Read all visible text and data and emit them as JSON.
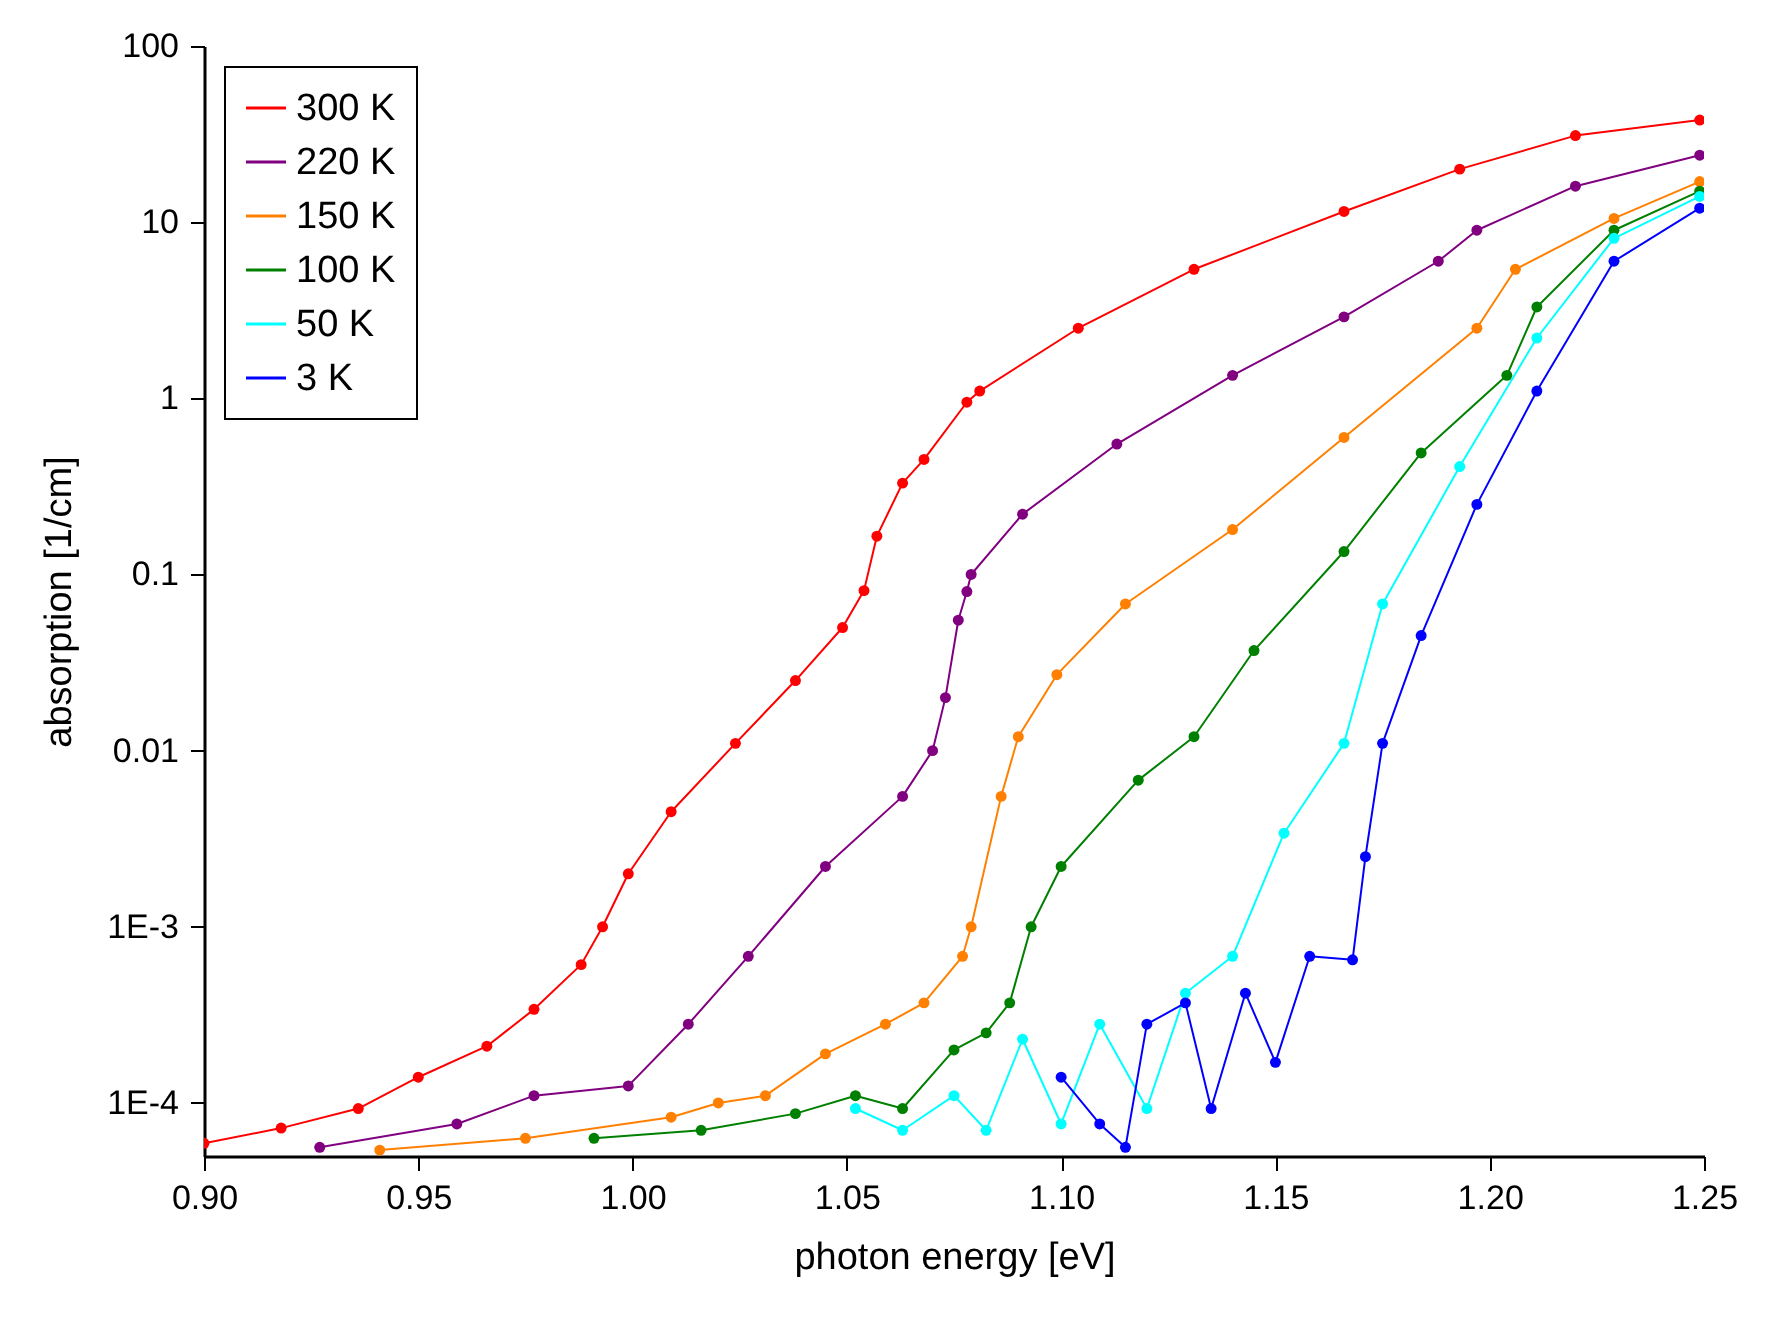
{
  "chart_data": {
    "type": "line",
    "xlabel": "photon energy [eV]",
    "ylabel": "absorption [1/cm]",
    "log": "y",
    "grid": false,
    "legend": "top left",
    "marker": "circle",
    "line_style": "solid",
    "xlim": [
      0.9,
      1.25
    ],
    "xticks": [
      {
        "value": 0.9,
        "label": "0.90"
      },
      0.95,
      {
        "value": 1.0,
        "label": "1.00"
      },
      1.05,
      {
        "value": 1.1,
        "label": "1.10"
      },
      1.15,
      {
        "value": 1.2,
        "label": "1.20"
      },
      1.25
    ],
    "ylim": [
      5e-05,
      100
    ],
    "yticks": [
      {
        "value": 0.0001,
        "label": "1E-4"
      },
      {
        "value": 0.001,
        "label": "1E-3"
      },
      0.01,
      0.1,
      1,
      10,
      100
    ],
    "series": [
      {
        "name": "300 K",
        "color": "#ff0000",
        "x": [
          0.9,
          0.918,
          0.936,
          0.95,
          0.966,
          0.977,
          0.988,
          0.993,
          0.999,
          1.009,
          1.024,
          1.038,
          1.049,
          1.054,
          1.057,
          1.063,
          1.068,
          1.078,
          1.081,
          1.104,
          1.131,
          1.166,
          1.193,
          1.22,
          1.249
        ],
        "values": [
          5.9e-05,
          7.2e-05,
          9.3e-05,
          0.00014,
          0.00021,
          0.00034,
          0.00061,
          0.001,
          0.002,
          0.0045,
          0.011,
          0.025,
          0.05,
          0.081,
          0.165,
          0.33,
          0.45,
          0.95,
          1.1,
          2.5,
          5.4,
          11.5,
          20,
          31,
          38
        ]
      },
      {
        "name": "220 K",
        "color": "#800080",
        "x": [
          0.927,
          0.959,
          0.977,
          0.999,
          1.013,
          1.027,
          1.045,
          1.063,
          1.07,
          1.073,
          1.076,
          1.078,
          1.079,
          1.091,
          1.113,
          1.14,
          1.166,
          1.188,
          1.197,
          1.22,
          1.249
        ],
        "values": [
          5.6e-05,
          7.6e-05,
          0.00011,
          0.000125,
          0.00028,
          0.00068,
          0.0022,
          0.0055,
          0.01,
          0.02,
          0.055,
          0.08,
          0.1,
          0.22,
          0.55,
          1.35,
          2.9,
          6,
          9,
          16,
          24
        ]
      },
      {
        "name": "150 K",
        "color": "#ff8000",
        "x": [
          0.941,
          0.975,
          1.009,
          1.02,
          1.031,
          1.045,
          1.059,
          1.068,
          1.077,
          1.079,
          1.086,
          1.09,
          1.099,
          1.115,
          1.14,
          1.166,
          1.197,
          1.206,
          1.229,
          1.249
        ],
        "values": [
          5.4e-05,
          6.3e-05,
          8.3e-05,
          0.0001,
          0.00011,
          0.00019,
          0.00028,
          0.00037,
          0.00068,
          0.001,
          0.0055,
          0.012,
          0.027,
          0.068,
          0.18,
          0.6,
          2.5,
          5.4,
          10.5,
          17
        ]
      },
      {
        "name": "100 K",
        "color": "#008000",
        "x": [
          0.991,
          1.016,
          1.038,
          1.052,
          1.063,
          1.075,
          1.0825,
          1.088,
          1.093,
          1.1,
          1.118,
          1.131,
          1.145,
          1.166,
          1.184,
          1.204,
          1.211,
          1.229,
          1.249
        ],
        "values": [
          6.3e-05,
          7e-05,
          8.7e-05,
          0.00011,
          9.3e-05,
          0.0002,
          0.00025,
          0.00037,
          0.001,
          0.0022,
          0.0068,
          0.012,
          0.037,
          0.135,
          0.49,
          1.35,
          3.3,
          9,
          15
        ]
      },
      {
        "name": "50 K",
        "color": "#00ffff",
        "x": [
          1.052,
          1.063,
          1.075,
          1.0825,
          1.091,
          1.1,
          1.109,
          1.12,
          1.129,
          1.14,
          1.152,
          1.166,
          1.175,
          1.193,
          1.211,
          1.229,
          1.249
        ],
        "values": [
          9.3e-05,
          7e-05,
          0.00011,
          7e-05,
          0.00023,
          7.6e-05,
          0.00028,
          9.3e-05,
          0.00042,
          0.00068,
          0.0034,
          0.011,
          0.068,
          0.41,
          2.2,
          8.1,
          14
        ]
      },
      {
        "name": "3 K",
        "color": "#0000ff",
        "x": [
          1.1,
          1.109,
          1.115,
          1.12,
          1.129,
          1.135,
          1.143,
          1.15,
          1.158,
          1.168,
          1.171,
          1.175,
          1.184,
          1.197,
          1.211,
          1.229,
          1.249
        ],
        "values": [
          0.00014,
          7.6e-05,
          5.6e-05,
          0.00028,
          0.00037,
          9.3e-05,
          0.00042,
          0.00017,
          0.00068,
          0.00065,
          0.0025,
          0.011,
          0.045,
          0.25,
          1.1,
          6,
          12
        ]
      }
    ]
  }
}
